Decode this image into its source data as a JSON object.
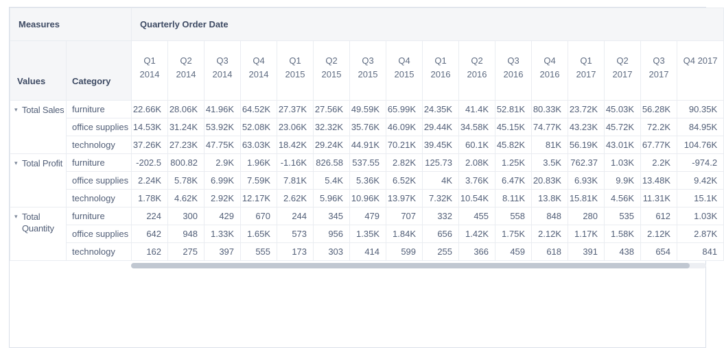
{
  "icons": {
    "collapse_caret": "▾"
  },
  "colors": {
    "widget_border": "#d9dfe8",
    "header_background": "#f5f6f8",
    "grid_line": "#e9ecf1",
    "header_text": "#3d4a63",
    "cell_text": "#515e77",
    "scrollbar_thumb": "#c0c7d1",
    "scrollbar_track": "#edeff3"
  },
  "table": {
    "corner_label": "Measures",
    "column_group_label": "Quarterly Order Date",
    "row_header_labels": {
      "values": "Values",
      "category": "Category"
    },
    "quarter_columns": [
      "Q1 2014",
      "Q2 2014",
      "Q3 2014",
      "Q4 2014",
      "Q1 2015",
      "Q2 2015",
      "Q3 2015",
      "Q4 2015",
      "Q1 2016",
      "Q2 2016",
      "Q3 2016",
      "Q4 2016",
      "Q1 2017",
      "Q2 2017",
      "Q3 2017",
      "Q4 2017"
    ],
    "measures": [
      {
        "label": "Total Sales",
        "rows": [
          {
            "category": "furniture",
            "values": [
              "22.66K",
              "28.06K",
              "41.96K",
              "64.52K",
              "27.37K",
              "27.56K",
              "49.59K",
              "65.99K",
              "24.35K",
              "41.4K",
              "52.81K",
              "80.33K",
              "23.72K",
              "45.03K",
              "56.28K",
              "90.35K"
            ]
          },
          {
            "category": "office supplies",
            "values": [
              "14.53K",
              "31.24K",
              "53.92K",
              "52.08K",
              "23.06K",
              "32.32K",
              "35.76K",
              "46.09K",
              "29.44K",
              "34.58K",
              "45.15K",
              "74.77K",
              "43.23K",
              "45.72K",
              "72.2K",
              "84.95K"
            ]
          },
          {
            "category": "technology",
            "values": [
              "37.26K",
              "27.23K",
              "47.75K",
              "63.03K",
              "18.42K",
              "29.24K",
              "44.91K",
              "70.21K",
              "39.45K",
              "60.1K",
              "45.82K",
              "81K",
              "56.19K",
              "43.01K",
              "67.77K",
              "104.76K"
            ]
          }
        ]
      },
      {
        "label": "Total Profit",
        "rows": [
          {
            "category": "furniture",
            "values": [
              "-202.5",
              "800.82",
              "2.9K",
              "1.96K",
              "-1.16K",
              "826.58",
              "537.55",
              "2.82K",
              "125.73",
              "2.08K",
              "1.25K",
              "3.5K",
              "762.37",
              "1.03K",
              "2.2K",
              "-974.2"
            ]
          },
          {
            "category": "office supplies",
            "values": [
              "2.24K",
              "5.78K",
              "6.99K",
              "7.59K",
              "7.81K",
              "5.4K",
              "5.36K",
              "6.52K",
              "4K",
              "3.76K",
              "6.47K",
              "20.83K",
              "6.93K",
              "9.9K",
              "13.48K",
              "9.42K"
            ]
          },
          {
            "category": "technology",
            "values": [
              "1.78K",
              "4.62K",
              "2.92K",
              "12.17K",
              "2.62K",
              "5.96K",
              "10.96K",
              "13.97K",
              "7.32K",
              "10.54K",
              "8.11K",
              "13.8K",
              "15.81K",
              "4.56K",
              "11.31K",
              "15.1K"
            ]
          }
        ]
      },
      {
        "label": "Total Quantity",
        "rows": [
          {
            "category": "furniture",
            "values": [
              "224",
              "300",
              "429",
              "670",
              "244",
              "345",
              "479",
              "707",
              "332",
              "455",
              "558",
              "848",
              "280",
              "535",
              "612",
              "1.03K"
            ]
          },
          {
            "category": "office supplies",
            "values": [
              "642",
              "948",
              "1.33K",
              "1.65K",
              "573",
              "956",
              "1.35K",
              "1.84K",
              "656",
              "1.42K",
              "1.75K",
              "2.12K",
              "1.17K",
              "1.58K",
              "2.12K",
              "2.87K"
            ]
          },
          {
            "category": "technology",
            "values": [
              "162",
              "275",
              "397",
              "555",
              "173",
              "303",
              "414",
              "599",
              "255",
              "366",
              "459",
              "618",
              "391",
              "438",
              "654",
              "841"
            ]
          }
        ]
      }
    ]
  }
}
